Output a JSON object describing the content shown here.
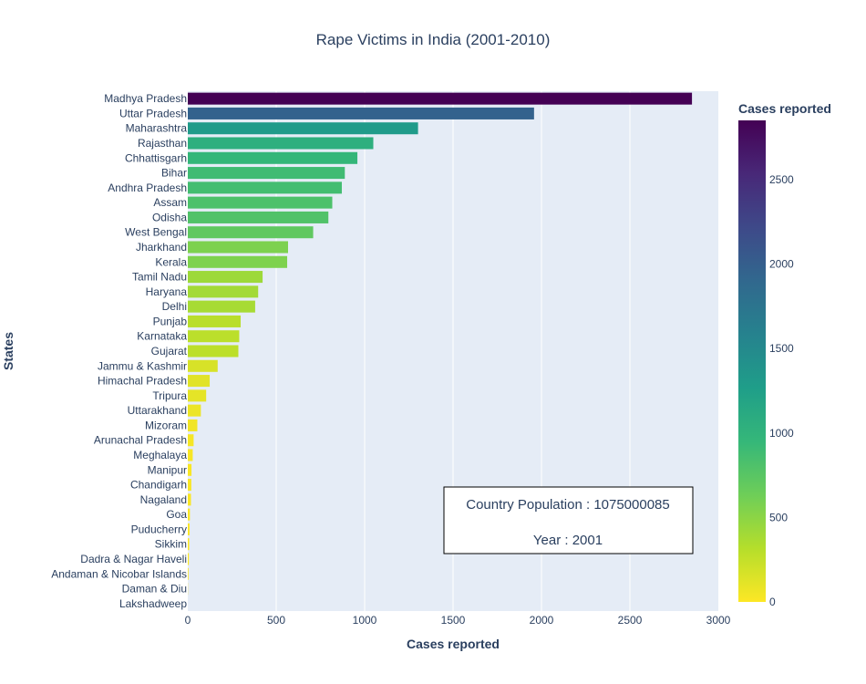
{
  "chart_data": {
    "type": "bar",
    "orientation": "horizontal",
    "title": "Rape Victims in India (2001-2010)",
    "xlabel": "Cases reported",
    "ylabel": "States",
    "xlim": [
      0,
      3000
    ],
    "x_ticks": [
      0,
      500,
      1000,
      1500,
      2000,
      2500,
      3000
    ],
    "grid": true,
    "colorbar": {
      "title": "Cases reported",
      "range": [
        0,
        2851
      ],
      "ticks": [
        0,
        500,
        1000,
        1500,
        2000,
        2500
      ],
      "colorscale": "Viridis (reversed)"
    },
    "categories": [
      "Madhya Pradesh",
      "Uttar Pradesh",
      "Maharashtra",
      "Rajasthan",
      "Chhattisgarh",
      "Bihar",
      "Andhra Pradesh",
      "Assam",
      "Odisha",
      "West Bengal",
      "Jharkhand",
      "Kerala",
      "Tamil Nadu",
      "Haryana",
      "Delhi",
      "Punjab",
      "Karnataka",
      "Gujarat",
      "Jammu & Kashmir",
      "Himachal Pradesh",
      "Tripura",
      "Uttarakhand",
      "Mizoram",
      "Arunachal Pradesh",
      "Meghalaya",
      "Manipur",
      "Chandigarh",
      "Nagaland",
      "Goa",
      "Puducherry",
      "Sikkim",
      "Dadra & Nagar Haveli",
      "Andaman & Nicobar Islands",
      "Daman & Diu",
      "Lakshadweep"
    ],
    "values": [
      2851,
      1958,
      1302,
      1049,
      959,
      888,
      871,
      817,
      795,
      709,
      567,
      562,
      423,
      398,
      381,
      299,
      291,
      286,
      169,
      124,
      104,
      74,
      54,
      33,
      28,
      21,
      20,
      18,
      12,
      10,
      8,
      6,
      4,
      1,
      0
    ],
    "annotation": {
      "line1": "Country Population : 1075000085",
      "line2": "Year : 2001"
    }
  }
}
